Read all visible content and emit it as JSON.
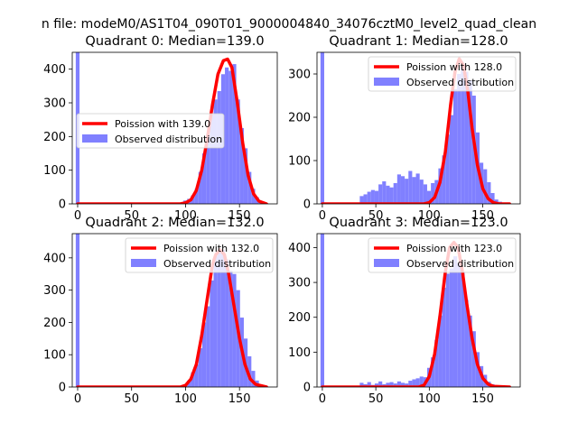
{
  "figure_title": "n file: modeM0/AS1T04_090T01_9000004840_34076cztM0_level2_quad_clean",
  "colors": {
    "fit": "#ff0000",
    "hist": "#8080ff",
    "axis": "#000000"
  },
  "chart_data": [
    {
      "type": "bar",
      "title": "Quadrant 0: Median=139.0",
      "xlim": [
        -5,
        185
      ],
      "ylim": [
        0,
        450
      ],
      "xticks": [
        0,
        50,
        100,
        150
      ],
      "yticks": [
        0,
        100,
        200,
        300,
        400
      ],
      "legend": {
        "position": "center-left",
        "fit_label": "Poission with 139.0",
        "hist_label": "Observed distribution"
      },
      "bin_width": 3.5,
      "spike": {
        "x": 0,
        "value": 450
      },
      "histogram": {
        "bin_starts": [
          98,
          101.5,
          105,
          108.5,
          112,
          115.5,
          119,
          122.5,
          126,
          129.5,
          133,
          136.5,
          140,
          143.5,
          147,
          150.5,
          154,
          157.5,
          161,
          164.5,
          168,
          171.5
        ],
        "values": [
          10,
          15,
          25,
          45,
          95,
          150,
          205,
          265,
          310,
          335,
          385,
          405,
          395,
          415,
          310,
          225,
          165,
          95,
          45,
          20,
          8,
          3
        ]
      },
      "fit": {
        "x": [
          0,
          95,
          100,
          105,
          110,
          115,
          120,
          125,
          130,
          135,
          139,
          143,
          148,
          153,
          158,
          163,
          168,
          175
        ],
        "y": [
          0,
          0,
          3,
          12,
          40,
          100,
          190,
          295,
          385,
          425,
          430,
          405,
          300,
          180,
          85,
          30,
          8,
          0
        ]
      }
    },
    {
      "type": "bar",
      "title": "Quadrant 1: Median=128.0",
      "xlim": [
        -5,
        185
      ],
      "ylim": [
        0,
        350
      ],
      "xticks": [
        0,
        50,
        100,
        150
      ],
      "yticks": [
        0,
        100,
        200,
        300
      ],
      "legend": {
        "position": "top-right",
        "fit_label": "Poission with 128.0",
        "hist_label": "Observed distribution"
      },
      "bin_width": 3.5,
      "spike": {
        "x": 0,
        "value": 350
      },
      "histogram": {
        "bin_starts": [
          35,
          38.5,
          42,
          45.5,
          49,
          52.5,
          56,
          59.5,
          63,
          66.5,
          70,
          73.5,
          77,
          80.5,
          84,
          87.5,
          91,
          94.5,
          98,
          101.5,
          105,
          108.5,
          112,
          115.5,
          119,
          122.5,
          126,
          129.5,
          133,
          136.5,
          140,
          143.5,
          147,
          150.5,
          154,
          157.5,
          161,
          164.5
        ],
        "values": [
          18,
          22,
          28,
          32,
          30,
          45,
          52,
          42,
          38,
          48,
          68,
          64,
          58,
          76,
          62,
          70,
          56,
          45,
          30,
          48,
          55,
          82,
          112,
          160,
          205,
          265,
          300,
          320,
          305,
          285,
          250,
          165,
          95,
          80,
          50,
          25,
          10,
          5
        ]
      },
      "fit": {
        "x": [
          0,
          95,
          100,
          105,
          110,
          115,
          120,
          124,
          128,
          132,
          136,
          140,
          145,
          150,
          155,
          160,
          165,
          175
        ],
        "y": [
          0,
          0,
          3,
          15,
          50,
          120,
          230,
          305,
          335,
          320,
          260,
          175,
          90,
          35,
          12,
          3,
          0,
          0
        ]
      }
    },
    {
      "type": "bar",
      "title": "Quadrant 2: Median=132.0",
      "xlim": [
        -5,
        185
      ],
      "ylim": [
        0,
        475
      ],
      "xticks": [
        0,
        50,
        100,
        150
      ],
      "yticks": [
        0,
        100,
        200,
        300,
        400
      ],
      "legend": {
        "position": "top-right",
        "fit_label": "Poission with 132.0",
        "hist_label": "Observed distribution"
      },
      "bin_width": 3.5,
      "spike": {
        "x": 0,
        "value": 475
      },
      "histogram": {
        "bin_starts": [
          98,
          101.5,
          105,
          108.5,
          112,
          115.5,
          119,
          122.5,
          126,
          129.5,
          133,
          136.5,
          140,
          143.5,
          147,
          150.5,
          154,
          157.5,
          161,
          164.5,
          168
        ],
        "values": [
          8,
          20,
          45,
          70,
          120,
          200,
          250,
          330,
          405,
          425,
          425,
          395,
          360,
          350,
          300,
          215,
          150,
          95,
          50,
          20,
          8
        ]
      },
      "fit": {
        "x": [
          0,
          95,
          100,
          105,
          110,
          115,
          120,
          125,
          128,
          132,
          136,
          140,
          145,
          150,
          155,
          160,
          165,
          175
        ],
        "y": [
          0,
          0,
          5,
          25,
          70,
          160,
          270,
          380,
          410,
          425,
          410,
          350,
          250,
          150,
          70,
          25,
          8,
          0
        ]
      }
    },
    {
      "type": "bar",
      "title": "Quadrant 3: Median=123.0",
      "xlim": [
        -5,
        185
      ],
      "ylim": [
        0,
        440
      ],
      "xticks": [
        0,
        50,
        100,
        150
      ],
      "yticks": [
        0,
        100,
        200,
        300,
        400
      ],
      "legend": {
        "position": "top-right",
        "fit_label": "Poission with 123.0",
        "hist_label": "Observed distribution"
      },
      "bin_width": 3.5,
      "spike": {
        "x": 0,
        "value": 440
      },
      "histogram": {
        "bin_starts": [
          35,
          38.5,
          42,
          45.5,
          49,
          52.5,
          56,
          59.5,
          63,
          66.5,
          70,
          73.5,
          77,
          80.5,
          84,
          87.5,
          91,
          94.5,
          98,
          101.5,
          105,
          108.5,
          112,
          115.5,
          119,
          122.5,
          126,
          129.5,
          133,
          136.5,
          140,
          143.5,
          147,
          150.5,
          154,
          157.5,
          161
        ],
        "values": [
          12,
          8,
          14,
          6,
          10,
          16,
          8,
          12,
          14,
          10,
          16,
          12,
          10,
          18,
          22,
          25,
          30,
          28,
          55,
          85,
          135,
          205,
          285,
          325,
          340,
          375,
          355,
          330,
          250,
          205,
          160,
          100,
          60,
          35,
          15,
          8,
          3
        ]
      },
      "fit": {
        "x": [
          0,
          90,
          95,
          100,
          105,
          110,
          115,
          119,
          123,
          127,
          131,
          135,
          140,
          145,
          150,
          155,
          160,
          175
        ],
        "y": [
          0,
          0,
          5,
          30,
          95,
          205,
          330,
          400,
          415,
          400,
          330,
          240,
          140,
          65,
          25,
          8,
          2,
          0
        ]
      }
    }
  ]
}
